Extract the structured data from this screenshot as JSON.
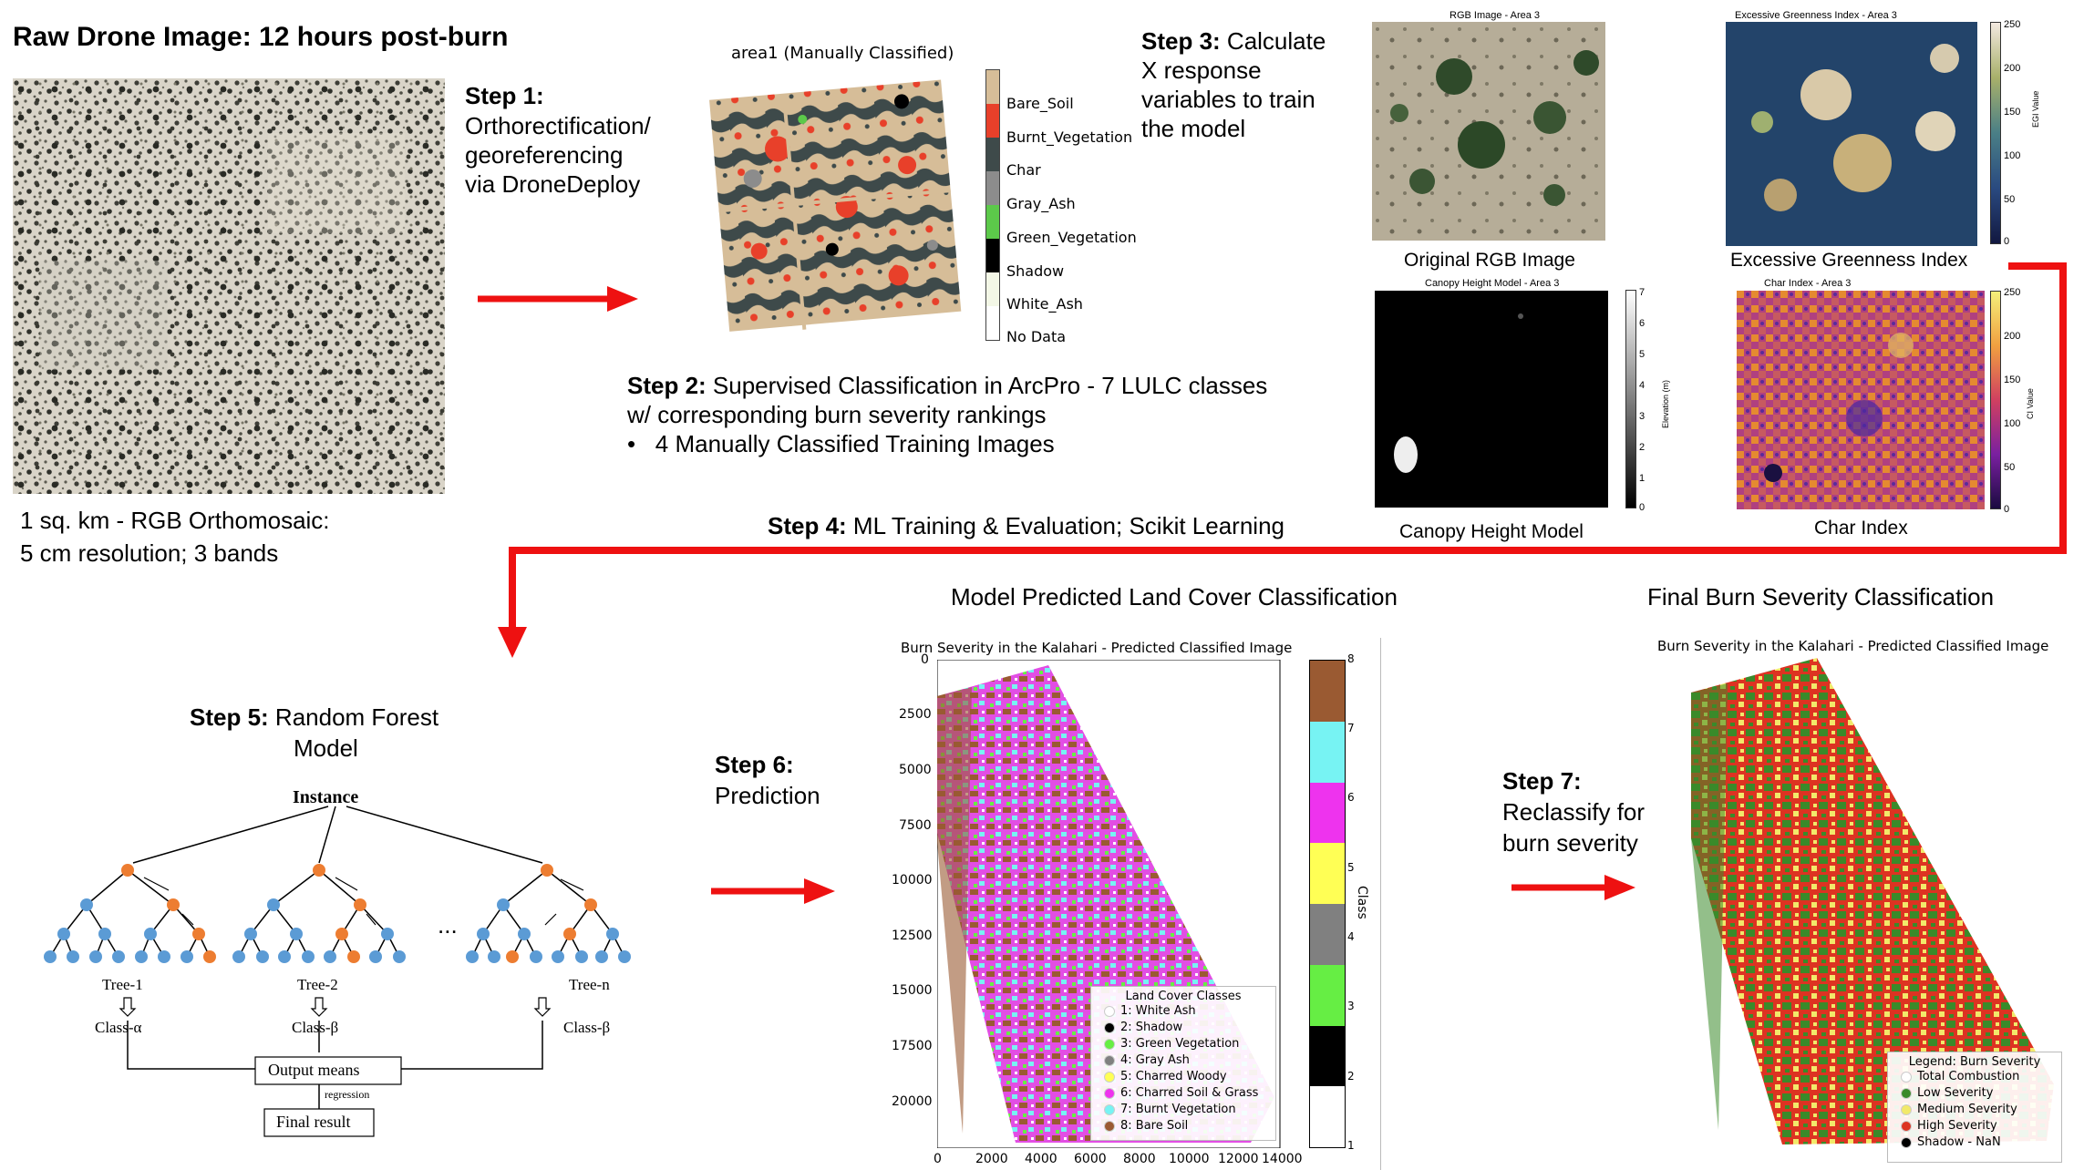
{
  "raw": {
    "title": "Raw Drone Image: 12 hours post-burn",
    "caption_line1": "1 sq. km - RGB Orthomosaic:",
    "caption_line2": "5 cm resolution; 3 bands"
  },
  "step1": {
    "label": "Step 1:",
    "line1": "Orthorectification/",
    "line2": "georeferencing",
    "line3": "via DroneDeploy"
  },
  "area1": {
    "title": "area1 (Manually Classified)",
    "legend": [
      "Bare_Soil",
      "Burnt_Vegetation",
      "Char",
      "Gray_Ash",
      "Green_Vegetation",
      "Shadow",
      "White_Ash",
      "No Data"
    ],
    "colors": [
      "#d6bd98",
      "#e8402a",
      "#3e4a4a",
      "#8c8c8c",
      "#5cc94a",
      "#000000",
      "#f3f7e6",
      "#ffffff"
    ]
  },
  "step2": {
    "label": "Step 2:",
    "line1": "Supervised Classification in ArcPro - 7 LULC classes",
    "line2": "w/ corresponding burn severity rankings",
    "bullet": "4 Manually Classified Training Images"
  },
  "step3": {
    "label": "Step 3:",
    "line1": "Calculate",
    "line2": "X response",
    "line3": "variables to train",
    "line4": "the model"
  },
  "panels": {
    "rgb": {
      "small_title": "RGB Image - Area 3",
      "caption": "Original RGB Image"
    },
    "egi": {
      "small_title": "Excessive Greenness Index - Area 3",
      "caption": "Excessive Greenness Index",
      "cbar_label": "EGI Value",
      "ticks": [
        "250",
        "200",
        "150",
        "100",
        "50",
        "0"
      ]
    },
    "chm": {
      "small_title": "Canopy Height Model - Area 3",
      "caption": "Canopy Height Model",
      "cbar_label": "Elevation (m)",
      "ticks": [
        "7",
        "6",
        "5",
        "4",
        "3",
        "2",
        "1",
        "0"
      ]
    },
    "ci": {
      "small_title": "Char Index - Area 3",
      "caption": "Char Index",
      "cbar_label": "CI Value",
      "ticks": [
        "250",
        "200",
        "150",
        "100",
        "50",
        "0"
      ]
    }
  },
  "step4": {
    "label": "Step 4:",
    "text": "ML Training & Evaluation; Scikit Learning"
  },
  "step5": {
    "label": "Step 5:",
    "line1": "Random Forest",
    "line2": "Model",
    "instance": "Instance",
    "dots": "...",
    "trees": [
      {
        "name": "Tree-1",
        "cls": "Class-α"
      },
      {
        "name": "Tree-2",
        "cls": "Class-β"
      },
      {
        "name": "Tree-n",
        "cls": "Class-β"
      }
    ],
    "output": "Output means",
    "regression": "regression",
    "final": "Final result"
  },
  "step6": {
    "label": "Step 6:",
    "text": "Prediction"
  },
  "predicted": {
    "heading": "Model Predicted Land Cover Classification",
    "plot_title": "Burn Severity in the Kalahari - Predicted Classified Image",
    "yticks": [
      "0",
      "2500",
      "5000",
      "7500",
      "10000",
      "12500",
      "15000",
      "17500",
      "20000"
    ],
    "xticks": [
      "0",
      "2000",
      "4000",
      "6000",
      "8000",
      "10000",
      "12000",
      "14000"
    ],
    "cbar_ticks": [
      "8",
      "7",
      "6",
      "5",
      "4",
      "3",
      "2",
      "1"
    ],
    "cbar_label": "Class",
    "legend_title": "Land Cover Classes",
    "legend": [
      {
        "label": "1: White Ash",
        "color": "#ffffff"
      },
      {
        "label": "2: Shadow",
        "color": "#000000"
      },
      {
        "label": "3: Green Vegetation",
        "color": "#66ee44"
      },
      {
        "label": "4: Gray Ash",
        "color": "#808080"
      },
      {
        "label": "5: Charred Woody",
        "color": "#ffff55"
      },
      {
        "label": "6: Charred Soil & Grass",
        "color": "#ee33ee"
      },
      {
        "label": "7:  Burnt Vegetation",
        "color": "#77f3f3"
      },
      {
        "label": "8: Bare Soil",
        "color": "#9a5a32"
      }
    ],
    "class_colors": [
      "#ffffff",
      "#000000",
      "#66ee44",
      "#808080",
      "#ffff55",
      "#ee33ee",
      "#77f3f3",
      "#9a5a32"
    ]
  },
  "step7": {
    "label": "Step 7:",
    "line1": "Reclassify for",
    "line2": "burn severity"
  },
  "final": {
    "heading": "Final Burn Severity Classification",
    "plot_title": "Burn Severity in the Kalahari - Predicted Classified Image",
    "legend_title": "Legend: Burn Severity",
    "legend": [
      {
        "label": "Total Combustion",
        "color": "#ffffff"
      },
      {
        "label": "Low Severity",
        "color": "#3a8a2a"
      },
      {
        "label": "Medium Severity",
        "color": "#f2e96a"
      },
      {
        "label": "High Severity",
        "color": "#dd3322"
      },
      {
        "label": "Shadow - NaN",
        "color": "#000000"
      }
    ]
  }
}
